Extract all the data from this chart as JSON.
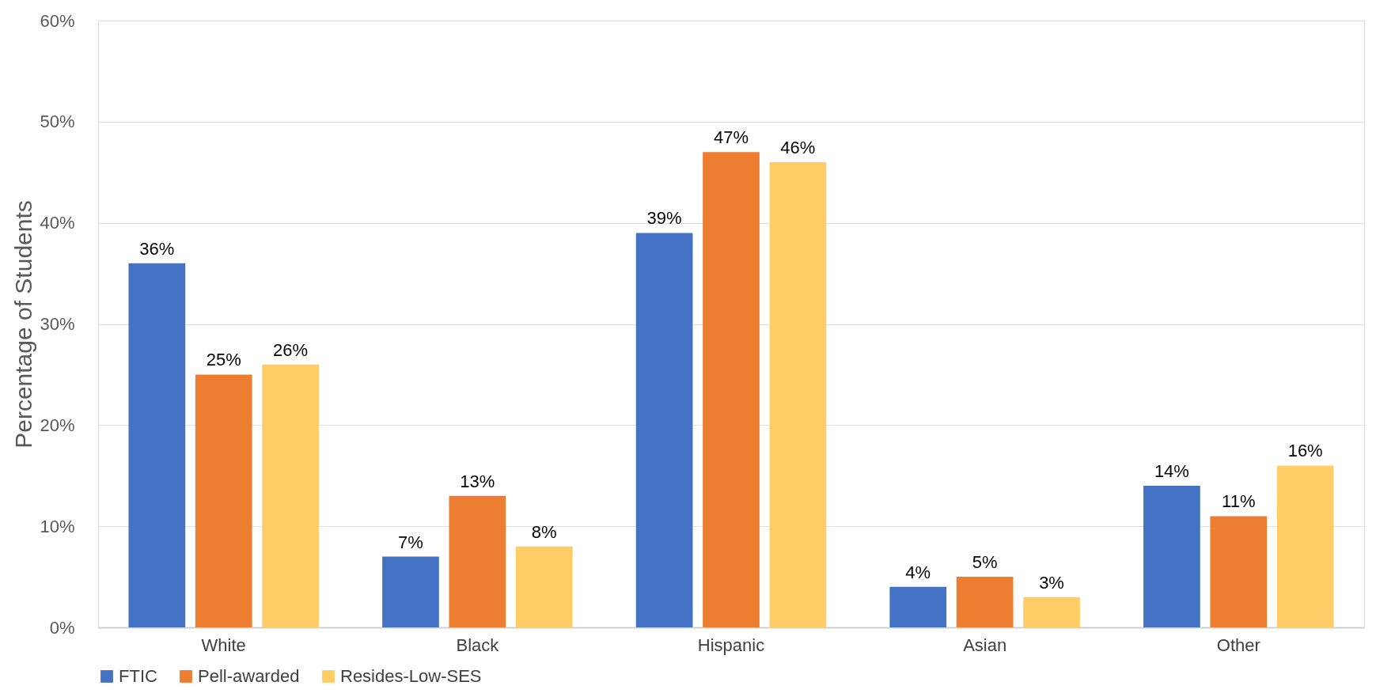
{
  "chart_data": {
    "type": "bar",
    "ylabel": "Percentage of Students",
    "categories": [
      "White",
      "Black",
      "Hispanic",
      "Asian",
      "Other"
    ],
    "series": [
      {
        "name": "FTIC",
        "color": "#4472c4",
        "values": [
          36,
          7,
          39,
          4,
          14
        ],
        "value_labels": [
          "36%",
          "7%",
          "39%",
          "4%",
          "14%"
        ]
      },
      {
        "name": "Pell-awarded",
        "color": "#ed7d31",
        "values": [
          25,
          13,
          47,
          5,
          11
        ],
        "value_labels": [
          "25%",
          "13%",
          "47%",
          "5%",
          "11%"
        ]
      },
      {
        "name": "Resides-Low-SES",
        "color": "#ffcc66",
        "values": [
          26,
          8,
          46,
          3,
          16
        ],
        "value_labels": [
          "26%",
          "8%",
          "46%",
          "3%",
          "16%"
        ]
      }
    ],
    "ylim": [
      0,
      60
    ],
    "yticks": [
      {
        "value": 0,
        "label": "0%"
      },
      {
        "value": 10,
        "label": "10%"
      },
      {
        "value": 20,
        "label": "20%"
      },
      {
        "value": 30,
        "label": "30%"
      },
      {
        "value": 40,
        "label": "40%"
      },
      {
        "value": 50,
        "label": "50%"
      },
      {
        "value": 60,
        "label": "60%"
      }
    ],
    "grid": "y",
    "legend": "bottom"
  }
}
